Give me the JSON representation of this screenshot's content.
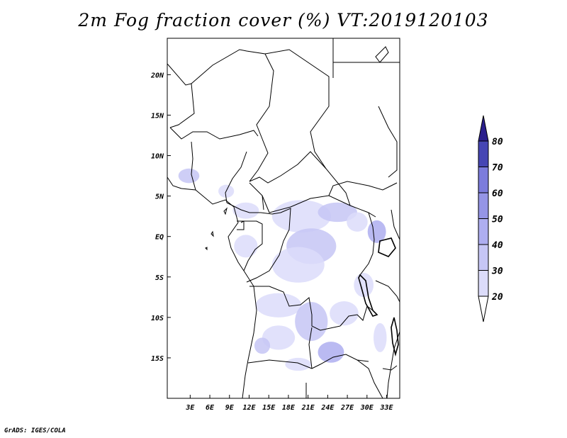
{
  "title": "2m Fog fraction cover (%) VT:2019120103",
  "credit": "GrADS: IGES/COLA",
  "map": {
    "lon_range": [
      -0.5,
      35
    ],
    "lat_range": [
      -20,
      24.5
    ],
    "lon_ticks": [
      {
        "value": 3,
        "label": "3E"
      },
      {
        "value": 6,
        "label": "6E"
      },
      {
        "value": 9,
        "label": "9E"
      },
      {
        "value": 12,
        "label": "12E"
      },
      {
        "value": 15,
        "label": "15E"
      },
      {
        "value": 18,
        "label": "18E"
      },
      {
        "value": 21,
        "label": "21E"
      },
      {
        "value": 24,
        "label": "24E"
      },
      {
        "value": 27,
        "label": "27E"
      },
      {
        "value": 30,
        "label": "30E"
      },
      {
        "value": 33,
        "label": "33E"
      }
    ],
    "lat_ticks": [
      {
        "value": 20,
        "label": "20N"
      },
      {
        "value": 15,
        "label": "15N"
      },
      {
        "value": 10,
        "label": "10N"
      },
      {
        "value": 5,
        "label": "5N"
      },
      {
        "value": 0,
        "label": "EQ"
      },
      {
        "value": -5,
        "label": "5S"
      },
      {
        "value": -10,
        "label": "10S"
      },
      {
        "value": -15,
        "label": "15S"
      }
    ]
  },
  "legend": {
    "levels": [
      "20",
      "30",
      "40",
      "50",
      "60",
      "70",
      "80"
    ],
    "colors": [
      "#ffffff",
      "#dcdcfa",
      "#c6c6f5",
      "#aeaef0",
      "#9595e6",
      "#7c7cdc",
      "#4646b4",
      "#2a1e8c"
    ]
  },
  "fog_patches": [
    {
      "lon": 2.8,
      "lat": 7.5,
      "rx": 1.6,
      "ry": 0.9,
      "level": 1
    },
    {
      "lon": 8.5,
      "lat": 5.6,
      "rx": 1.2,
      "ry": 0.8,
      "level": 0
    },
    {
      "lon": 11.5,
      "lat": 3.2,
      "rx": 2.0,
      "ry": 1.0,
      "level": 0
    },
    {
      "lon": 11.5,
      "lat": -1.2,
      "rx": 1.8,
      "ry": 1.4,
      "level": 0
    },
    {
      "lon": 20.0,
      "lat": 2.5,
      "rx": 4.5,
      "ry": 2.0,
      "level": 0
    },
    {
      "lon": 21.5,
      "lat": -1.2,
      "rx": 3.8,
      "ry": 2.2,
      "level": 1
    },
    {
      "lon": 19.5,
      "lat": -3.5,
      "rx": 4.0,
      "ry": 2.2,
      "level": 0
    },
    {
      "lon": 25.5,
      "lat": 3.0,
      "rx": 3.0,
      "ry": 1.2,
      "level": 1
    },
    {
      "lon": 31.5,
      "lat": 0.6,
      "rx": 1.4,
      "ry": 1.4,
      "level": 2
    },
    {
      "lon": 28.5,
      "lat": 1.8,
      "rx": 1.6,
      "ry": 1.2,
      "level": 0
    },
    {
      "lon": 16.5,
      "lat": -8.5,
      "rx": 3.5,
      "ry": 1.5,
      "level": 0
    },
    {
      "lon": 21.5,
      "lat": -10.5,
      "rx": 2.5,
      "ry": 2.4,
      "level": 1
    },
    {
      "lon": 16.5,
      "lat": -12.5,
      "rx": 2.5,
      "ry": 1.5,
      "level": 0
    },
    {
      "lon": 14.0,
      "lat": -13.5,
      "rx": 1.2,
      "ry": 1.0,
      "level": 1
    },
    {
      "lon": 24.5,
      "lat": -14.3,
      "rx": 2.0,
      "ry": 1.3,
      "level": 2
    },
    {
      "lon": 26.5,
      "lat": -9.5,
      "rx": 2.2,
      "ry": 1.5,
      "level": 0
    },
    {
      "lon": 29.5,
      "lat": -6.0,
      "rx": 1.5,
      "ry": 1.5,
      "level": 0
    },
    {
      "lon": 19.5,
      "lat": -15.8,
      "rx": 2.0,
      "ry": 0.8,
      "level": 0
    },
    {
      "lon": 32.0,
      "lat": -12.5,
      "rx": 1.0,
      "ry": 1.8,
      "level": 0
    }
  ]
}
